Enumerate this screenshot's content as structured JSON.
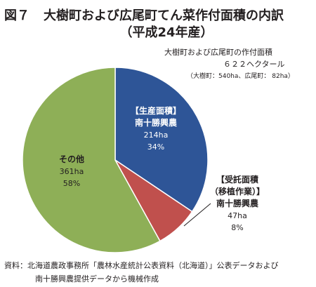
{
  "title": {
    "figure_label": "図７",
    "line1": "大樹町および広尾町てん菜作付面積の内訳",
    "line2": "（平成24年産）"
  },
  "note": {
    "title": "大樹町および広尾町の作付面積",
    "total": "６２２ヘクタール",
    "breakdown": "（大樹町：540ha、広尾町：  82ha）"
  },
  "source": {
    "line1": "資料：北海道農政事務所「農林水産統計公表資料（北海道）」公表データおよび",
    "line2": "南十勝興農提供データから機械作成"
  },
  "chart_data": {
    "type": "pie",
    "title": "大樹町および広尾町てん菜作付面積の内訳（平成24年産）",
    "total": "６２２ヘクタール",
    "slices": [
      {
        "lines": [
          "【生産面積】",
          "南十勝興農"
        ],
        "value": 214,
        "value_label": "214ha",
        "percent_label": "34%",
        "color": "#2e5597"
      },
      {
        "lines": [
          "【受託面積",
          "（移植作業）】",
          "南十勝興農"
        ],
        "value": 47,
        "value_label": "47ha",
        "percent_label": "8%",
        "color": "#c0504d"
      },
      {
        "lines": [
          "その他"
        ],
        "value": 361,
        "value_label": "361ha",
        "percent_label": "58%",
        "color": "#8eaf57"
      }
    ]
  }
}
